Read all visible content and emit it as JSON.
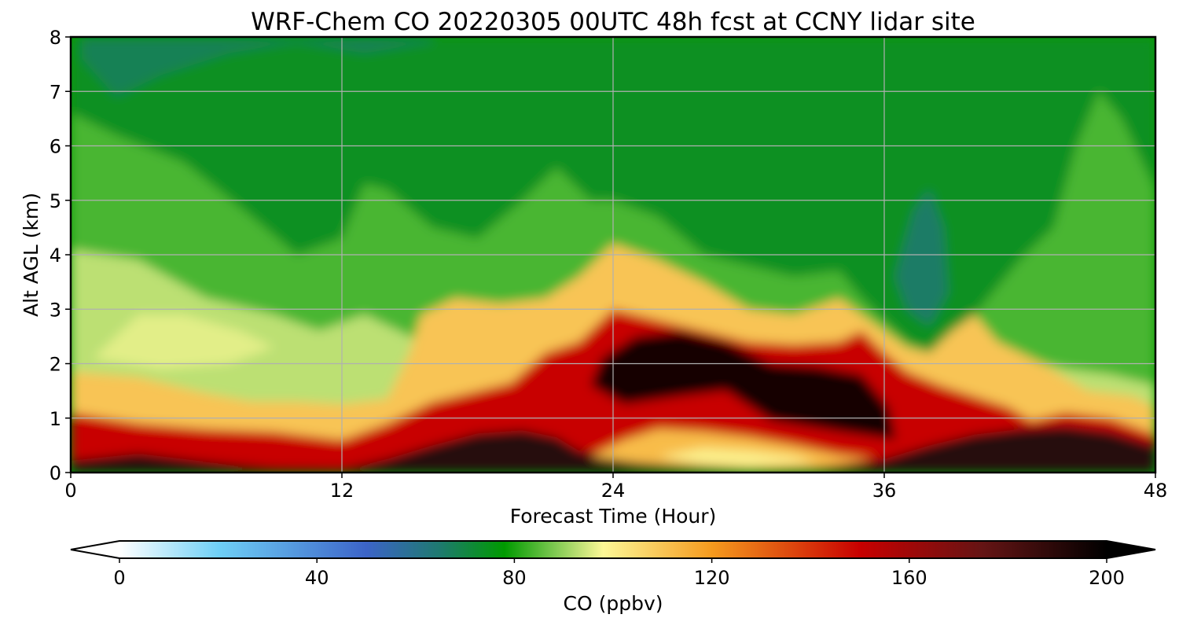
{
  "chart_data": {
    "type": "heatmap",
    "title": "WRF-Chem CO  20220305 00UTC 48h fcst at CCNY lidar site",
    "xlabel": "Forecast Time (Hour)",
    "ylabel": "Alt AGL (km)",
    "xlim": [
      0,
      48
    ],
    "ylim": [
      0,
      8
    ],
    "xticks": [
      0,
      12,
      24,
      36,
      48
    ],
    "xtick_labels": [
      "0",
      "12",
      "24",
      "36",
      "48"
    ],
    "yticks": [
      0,
      1,
      2,
      3,
      4,
      5,
      6,
      7,
      8
    ],
    "ytick_labels": [
      "0",
      "1",
      "2",
      "3",
      "4",
      "5",
      "6",
      "7",
      "8"
    ],
    "grid": true,
    "colorbar": {
      "label": "CO  (ppbv)",
      "orientation": "horizontal",
      "range": [
        0,
        200
      ],
      "extend": "both",
      "ticks": [
        0,
        40,
        80,
        120,
        160,
        200
      ],
      "tick_labels": [
        "0",
        "40",
        "80",
        "120",
        "160",
        "200"
      ],
      "color_stops": [
        {
          "value": 0,
          "color": "#ffffff"
        },
        {
          "value": 20,
          "color": "#6fd0f6"
        },
        {
          "value": 50,
          "color": "#3c64c8"
        },
        {
          "value": 65,
          "color": "#1e7a6e"
        },
        {
          "value": 78,
          "color": "#009a00"
        },
        {
          "value": 88,
          "color": "#7cc850"
        },
        {
          "value": 98,
          "color": "#fcf796"
        },
        {
          "value": 120,
          "color": "#f59a1e"
        },
        {
          "value": 150,
          "color": "#c80000"
        },
        {
          "value": 175,
          "color": "#641414"
        },
        {
          "value": 200,
          "color": "#000000"
        }
      ]
    },
    "field_regions": [
      {
        "z": 74,
        "points": [
          [
            0,
            0
          ],
          [
            48,
            0
          ],
          [
            48,
            8
          ],
          [
            0,
            8
          ]
        ]
      },
      {
        "z": 84,
        "points": [
          [
            0,
            0
          ],
          [
            0,
            6.6
          ],
          [
            2,
            6.2
          ],
          [
            5,
            5.7
          ],
          [
            8,
            4.7
          ],
          [
            10,
            4.0
          ],
          [
            12,
            4.3
          ],
          [
            13,
            5.3
          ],
          [
            14,
            5.2
          ],
          [
            16,
            4.5
          ],
          [
            18,
            4.3
          ],
          [
            20,
            5.0
          ],
          [
            21.5,
            5.6
          ],
          [
            23,
            5.0
          ],
          [
            24,
            5.0
          ],
          [
            26,
            4.7
          ],
          [
            28,
            4.0
          ],
          [
            30,
            3.8
          ],
          [
            32,
            3.6
          ],
          [
            34,
            3.7
          ],
          [
            35,
            3.2
          ],
          [
            36,
            2.8
          ],
          [
            37,
            2.4
          ],
          [
            38,
            2.2
          ],
          [
            40,
            2.9
          ],
          [
            42,
            3.9
          ],
          [
            43.5,
            4.5
          ],
          [
            44.5,
            6.0
          ],
          [
            45.5,
            7.0
          ],
          [
            46.5,
            6.5
          ],
          [
            48,
            5.2
          ],
          [
            48,
            0
          ]
        ]
      },
      {
        "z": 93,
        "points": [
          [
            0,
            0
          ],
          [
            0,
            4.1
          ],
          [
            3,
            3.9
          ],
          [
            6,
            3.2
          ],
          [
            9,
            2.9
          ],
          [
            11,
            2.6
          ],
          [
            13,
            2.9
          ],
          [
            14.5,
            2.6
          ],
          [
            16,
            2.3
          ],
          [
            18,
            2.0
          ],
          [
            20,
            2.8
          ],
          [
            22,
            3.4
          ],
          [
            24,
            3.8
          ],
          [
            26,
            3.6
          ],
          [
            28,
            3.2
          ],
          [
            30,
            3.0
          ],
          [
            32,
            2.8
          ],
          [
            34,
            2.7
          ],
          [
            35,
            2.9
          ],
          [
            36,
            2.5
          ],
          [
            37,
            2.2
          ],
          [
            38,
            2.1
          ],
          [
            40,
            2.2
          ],
          [
            42,
            2.1
          ],
          [
            44,
            1.9
          ],
          [
            46,
            1.8
          ],
          [
            48,
            1.6
          ],
          [
            48,
            0
          ]
        ]
      },
      {
        "z": 96,
        "points": [
          [
            1,
            2.1
          ],
          [
            3,
            2.9
          ],
          [
            5,
            2.9
          ],
          [
            7.5,
            2.6
          ],
          [
            9,
            2.3
          ],
          [
            7,
            2.0
          ],
          [
            4,
            1.9
          ]
        ]
      },
      {
        "z": 110,
        "points": [
          [
            0,
            0
          ],
          [
            0,
            1.85
          ],
          [
            3,
            1.75
          ],
          [
            6,
            1.45
          ],
          [
            8,
            1.3
          ],
          [
            10,
            1.3
          ],
          [
            12,
            1.25
          ],
          [
            14,
            1.35
          ],
          [
            15,
            2.2
          ],
          [
            15.5,
            2.9
          ],
          [
            17,
            3.2
          ],
          [
            19,
            3.1
          ],
          [
            21,
            3.2
          ],
          [
            22.5,
            3.6
          ],
          [
            24,
            4.2
          ],
          [
            26,
            3.9
          ],
          [
            28,
            3.5
          ],
          [
            30,
            3.0
          ],
          [
            32,
            2.9
          ],
          [
            34,
            3.2
          ],
          [
            35,
            2.9
          ],
          [
            36,
            2.6
          ],
          [
            37,
            2.3
          ],
          [
            38,
            2.2
          ],
          [
            39,
            2.6
          ],
          [
            40,
            2.9
          ],
          [
            41,
            2.4
          ],
          [
            43,
            2.0
          ],
          [
            45,
            1.5
          ],
          [
            47,
            1.4
          ],
          [
            48,
            1.2
          ],
          [
            48,
            0
          ]
        ]
      },
      {
        "z": 150,
        "points": [
          [
            0,
            0
          ],
          [
            0,
            1.1
          ],
          [
            3,
            0.9
          ],
          [
            6,
            0.8
          ],
          [
            9,
            0.75
          ],
          [
            12,
            0.6
          ],
          [
            14,
            0.9
          ],
          [
            16,
            1.3
          ],
          [
            18,
            1.5
          ],
          [
            19.5,
            1.65
          ],
          [
            21,
            2.2
          ],
          [
            22.5,
            2.4
          ],
          [
            24,
            3.0
          ],
          [
            26,
            2.8
          ],
          [
            28,
            2.6
          ],
          [
            30,
            2.4
          ],
          [
            32,
            2.35
          ],
          [
            34,
            2.4
          ],
          [
            35,
            2.6
          ],
          [
            36,
            2.2
          ],
          [
            37,
            1.85
          ],
          [
            38.5,
            1.6
          ],
          [
            40,
            1.4
          ],
          [
            41.5,
            1.2
          ],
          [
            42.5,
            0.95
          ],
          [
            44,
            1.1
          ],
          [
            46,
            1.0
          ],
          [
            48,
            0.7
          ],
          [
            48,
            0
          ]
        ]
      },
      {
        "z": 190,
        "points": [
          [
            0,
            0
          ],
          [
            0,
            0.22
          ],
          [
            3,
            0.35
          ],
          [
            6,
            0.2
          ],
          [
            9,
            0.08
          ],
          [
            12,
            0.06
          ],
          [
            14,
            0.25
          ],
          [
            16,
            0.5
          ],
          [
            18,
            0.72
          ],
          [
            20,
            0.78
          ],
          [
            21.5,
            0.65
          ],
          [
            22.5,
            0.4
          ],
          [
            24,
            0.3
          ],
          [
            26,
            0.2
          ],
          [
            28,
            0.12
          ],
          [
            31,
            0.04
          ],
          [
            34,
            0.1
          ],
          [
            36,
            0.25
          ],
          [
            38,
            0.5
          ],
          [
            40,
            0.7
          ],
          [
            42,
            0.8
          ],
          [
            44,
            0.85
          ],
          [
            46,
            0.75
          ],
          [
            48,
            0.5
          ],
          [
            48,
            0
          ]
        ]
      },
      {
        "z": 195,
        "points": [
          [
            23,
            1.6
          ],
          [
            23.5,
            2.1
          ],
          [
            25,
            2.5
          ],
          [
            27,
            2.6
          ],
          [
            29,
            2.4
          ],
          [
            31,
            2.0
          ],
          [
            33,
            1.95
          ],
          [
            35,
            1.8
          ],
          [
            36.2,
            1.2
          ],
          [
            36.5,
            0.6
          ],
          [
            34,
            0.75
          ],
          [
            31,
            0.95
          ],
          [
            29,
            1.5
          ],
          [
            27,
            1.4
          ],
          [
            24.5,
            1.25
          ]
        ]
      },
      {
        "z": 112,
        "points": [
          [
            23,
            0.3
          ],
          [
            24.5,
            0.6
          ],
          [
            26,
            0.8
          ],
          [
            28,
            0.75
          ],
          [
            30,
            0.65
          ],
          [
            32,
            0.5
          ],
          [
            34,
            0.32
          ],
          [
            35.5,
            0.25
          ],
          [
            33,
            0.08
          ],
          [
            30,
            0.05
          ],
          [
            27,
            0.12
          ],
          [
            25,
            0.18
          ]
        ]
      },
      {
        "z": 100,
        "points": [
          [
            26,
            0.3
          ],
          [
            28,
            0.45
          ],
          [
            30,
            0.4
          ],
          [
            32,
            0.3
          ],
          [
            33,
            0.18
          ],
          [
            30,
            0.1
          ],
          [
            28,
            0.15
          ]
        ]
      },
      {
        "z": 66,
        "points": [
          [
            36.5,
            3.6
          ],
          [
            37.3,
            4.8
          ],
          [
            38,
            5.2
          ],
          [
            38.6,
            4.5
          ],
          [
            38.8,
            3.3
          ],
          [
            38,
            2.7
          ],
          [
            37,
            3.0
          ]
        ]
      },
      {
        "z": 68,
        "points": [
          [
            0.5,
            7.6
          ],
          [
            2,
            6.9
          ],
          [
            4,
            7.3
          ],
          [
            7,
            7.7
          ],
          [
            10,
            7.9
          ],
          [
            13,
            7.7
          ],
          [
            16,
            7.9
          ],
          [
            16,
            8
          ],
          [
            0.5,
            8
          ]
        ]
      }
    ]
  }
}
